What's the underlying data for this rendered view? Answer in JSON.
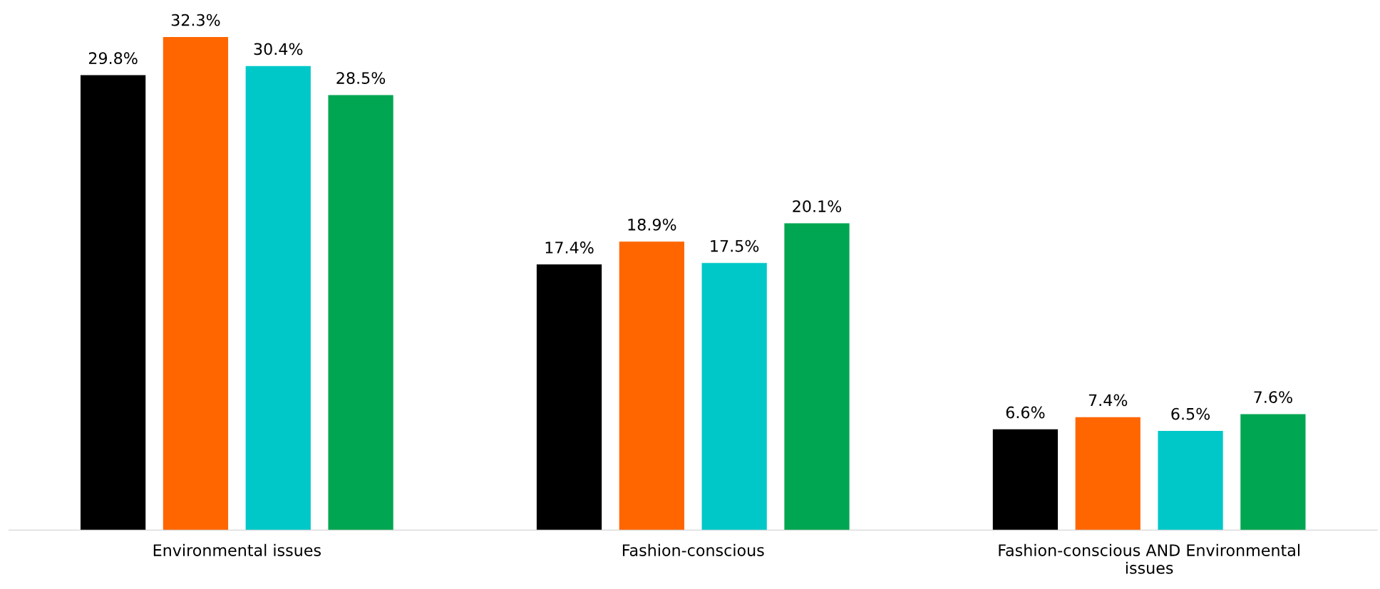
{
  "chart_data": {
    "type": "bar",
    "categories": [
      "Environmental issues",
      "Fashion-conscious",
      "Fashion-conscious AND Environmental\nissues"
    ],
    "series": [
      {
        "color": "#000000",
        "values": [
          29.8,
          17.4,
          6.6
        ],
        "value_labels": [
          "29.8%",
          "17.4%",
          "6.6%"
        ]
      },
      {
        "color": "#ff6600",
        "values": [
          32.3,
          18.9,
          7.4
        ],
        "value_labels": [
          "32.3%",
          "18.9%",
          "7.4%"
        ]
      },
      {
        "color": "#00c8c8",
        "values": [
          30.4,
          17.5,
          6.5
        ],
        "value_labels": [
          "30.4%",
          "17.5%",
          "6.5%"
        ]
      },
      {
        "color": "#00a651",
        "values": [
          28.5,
          20.1,
          7.6
        ],
        "value_labels": [
          "28.5%",
          "20.1%",
          "7.6%"
        ]
      }
    ],
    "tick_labels": "x"
  }
}
